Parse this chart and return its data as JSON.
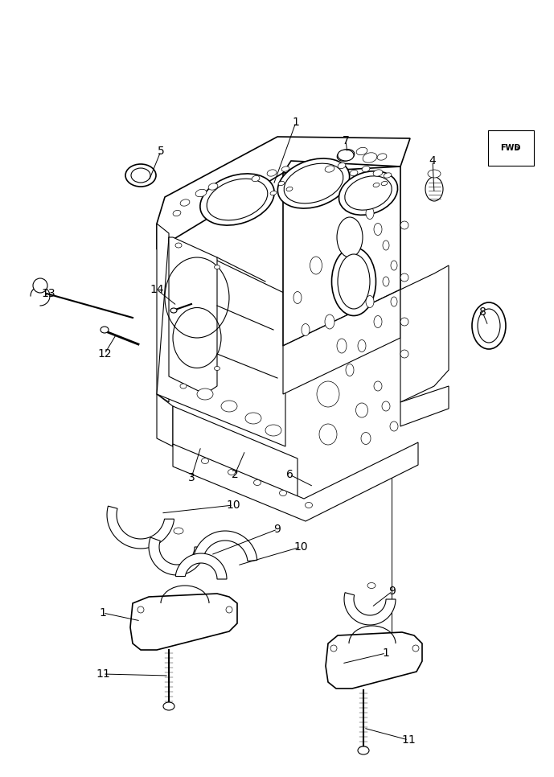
{
  "bg_color": "#ffffff",
  "lc": "#000000",
  "fig_width": 6.89,
  "fig_height": 9.66,
  "dpi": 100,
  "lw": 0.8,
  "lw2": 1.2
}
